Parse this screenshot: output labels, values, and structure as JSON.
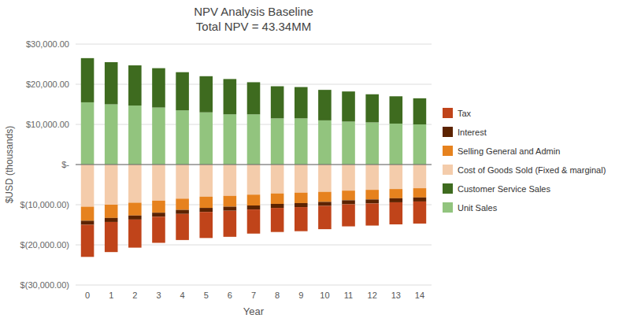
{
  "chart_data": {
    "type": "bar",
    "title": "NPV Analysis Baseline\nTotal NPV = 43.34MM",
    "xlabel": "Year",
    "ylabel": "$USD (thousands)",
    "categories": [
      "0",
      "1",
      "2",
      "3",
      "4",
      "5",
      "6",
      "7",
      "8",
      "9",
      "10",
      "11",
      "12",
      "13",
      "14"
    ],
    "series": [
      {
        "name": "Unit Sales",
        "color": "#92C47E",
        "values": [
          15500,
          15000,
          14700,
          14200,
          13500,
          13000,
          12500,
          12500,
          11500,
          11500,
          11000,
          10700,
          10500,
          10200,
          10000
        ]
      },
      {
        "name": "Customer Service Sales",
        "color": "#3E6B1F",
        "values": [
          11000,
          10500,
          10000,
          9800,
          9500,
          9000,
          8800,
          8000,
          8000,
          7800,
          7600,
          7500,
          7000,
          6800,
          6500
        ]
      },
      {
        "name": "Cost of Goods Sold (Fixed & marginal)",
        "color": "#F4CCAB",
        "values": [
          -10500,
          -10000,
          -9500,
          -9000,
          -8500,
          -8000,
          -7800,
          -7500,
          -7200,
          -7000,
          -6800,
          -6500,
          -6300,
          -6100,
          -5900
        ]
      },
      {
        "name": "Selling General and Admin",
        "color": "#E6821E",
        "values": [
          -3500,
          -3300,
          -3200,
          -3000,
          -2800,
          -2800,
          -2700,
          -2700,
          -2600,
          -2600,
          -2500,
          -2400,
          -2400,
          -2300,
          -2300
        ]
      },
      {
        "name": "Interest",
        "color": "#5C2300",
        "values": [
          -1000,
          -1000,
          -1000,
          -1000,
          -1000,
          -1000,
          -1000,
          -1000,
          -1000,
          -1000,
          -1000,
          -1000,
          -1000,
          -1000,
          -1000
        ]
      },
      {
        "name": "Tax",
        "color": "#C0441A",
        "values": [
          -8000,
          -7500,
          -7000,
          -6500,
          -6500,
          -6500,
          -6500,
          -6000,
          -6000,
          -6000,
          -5800,
          -5500,
          -5500,
          -5500,
          -5500
        ]
      }
    ],
    "stacked": true,
    "ylim": [
      -30000,
      30000
    ],
    "yticks": [
      {
        "value": -30000,
        "label": "$(30,000.00)"
      },
      {
        "value": -20000,
        "label": "$(20,000.00)"
      },
      {
        "value": -10000,
        "label": "$(10,000.00)"
      },
      {
        "value": 0,
        "label": "$-"
      },
      {
        "value": 10000,
        "label": "$10,000.00"
      },
      {
        "value": 20000,
        "label": "$20,000.00"
      },
      {
        "value": 30000,
        "label": "$30,000.00"
      }
    ],
    "grid": true,
    "legend": "right"
  }
}
